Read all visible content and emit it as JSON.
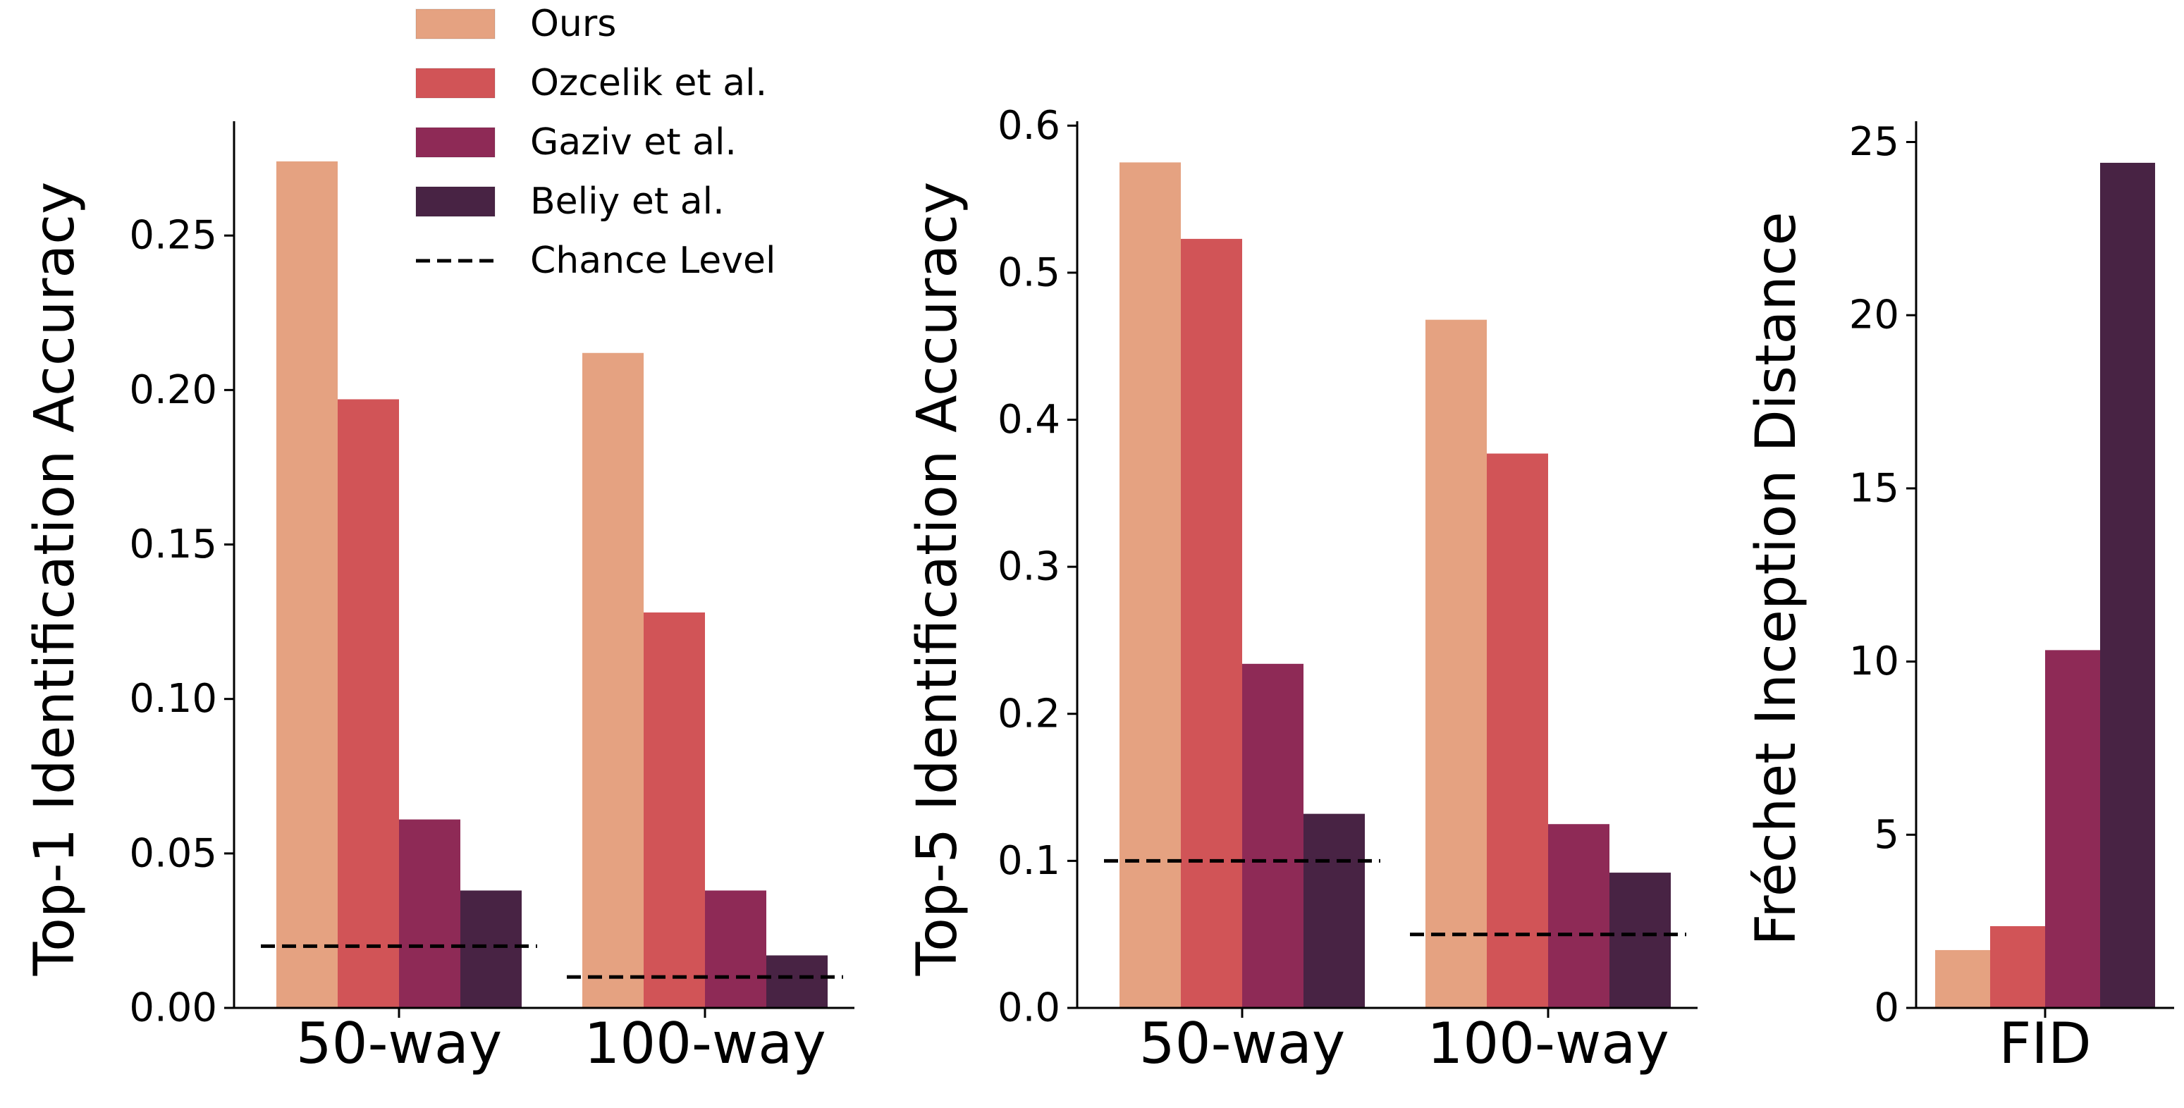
{
  "legend": {
    "placement": "top",
    "entries": [
      {
        "label": "Ours",
        "color": "#e5a281",
        "kind": "patch"
      },
      {
        "label": "Ozcelik et al.",
        "color": "#d15457",
        "kind": "patch"
      },
      {
        "label": "Gaziv et al.",
        "color": "#8e2a56",
        "kind": "patch"
      },
      {
        "label": "Beliy et al.",
        "color": "#482344",
        "kind": "patch"
      },
      {
        "label": "Chance Level",
        "color": "#000000",
        "kind": "dashed-line"
      }
    ]
  },
  "chart_data": [
    {
      "type": "bar",
      "ylabel": "Top-1 Identification Accuracy",
      "xlabel": "",
      "categories": [
        "50-way",
        "100-way"
      ],
      "ylim": [
        0,
        0.287
      ],
      "yticks": [
        0.0,
        0.05,
        0.1,
        0.15,
        0.2,
        0.25
      ],
      "ytick_labels": [
        "0.00",
        "0.05",
        "0.10",
        "0.15",
        "0.20",
        "0.25"
      ],
      "series": [
        {
          "name": "Ours",
          "color": "#e5a281",
          "values": [
            0.274,
            0.212
          ]
        },
        {
          "name": "Ozcelik et al.",
          "color": "#d15457",
          "values": [
            0.197,
            0.128
          ]
        },
        {
          "name": "Gaziv et al.",
          "color": "#8e2a56",
          "values": [
            0.061,
            0.038
          ]
        },
        {
          "name": "Beliy et al.",
          "color": "#482344",
          "values": [
            0.038,
            0.017
          ]
        }
      ],
      "chance_level": [
        0.02,
        0.01
      ],
      "grid": false
    },
    {
      "type": "bar",
      "ylabel": "Top-5 Identification Accuracy",
      "xlabel": "",
      "categories": [
        "50-way",
        "100-way"
      ],
      "ylim": [
        0,
        0.603
      ],
      "yticks": [
        0.0,
        0.1,
        0.2,
        0.3,
        0.4,
        0.5,
        0.6
      ],
      "ytick_labels": [
        "0.0",
        "0.1",
        "0.2",
        "0.3",
        "0.4",
        "0.5",
        "0.6"
      ],
      "series": [
        {
          "name": "Ours",
          "color": "#e5a281",
          "values": [
            0.575,
            0.468
          ]
        },
        {
          "name": "Ozcelik et al.",
          "color": "#d15457",
          "values": [
            0.523,
            0.377
          ]
        },
        {
          "name": "Gaziv et al.",
          "color": "#8e2a56",
          "values": [
            0.234,
            0.125
          ]
        },
        {
          "name": "Beliy et al.",
          "color": "#482344",
          "values": [
            0.132,
            0.092
          ]
        }
      ],
      "chance_level": [
        0.1,
        0.05
      ],
      "grid": false
    },
    {
      "type": "bar",
      "ylabel": "Fréchet Inception Distance",
      "xlabel": "",
      "categories": [
        "FID"
      ],
      "ylim": [
        0,
        25.6
      ],
      "yticks": [
        0,
        5,
        10,
        15,
        20,
        25
      ],
      "ytick_labels": [
        "0",
        "5",
        "10",
        "15",
        "20",
        "25"
      ],
      "series": [
        {
          "name": "Ours",
          "color": "#e5a281",
          "values": [
            1.67
          ]
        },
        {
          "name": "Ozcelik et al.",
          "color": "#d15457",
          "values": [
            2.36
          ]
        },
        {
          "name": "Gaziv et al.",
          "color": "#8e2a56",
          "values": [
            10.33
          ]
        },
        {
          "name": "Beliy et al.",
          "color": "#482344",
          "values": [
            24.4
          ]
        }
      ],
      "grid": false
    }
  ]
}
